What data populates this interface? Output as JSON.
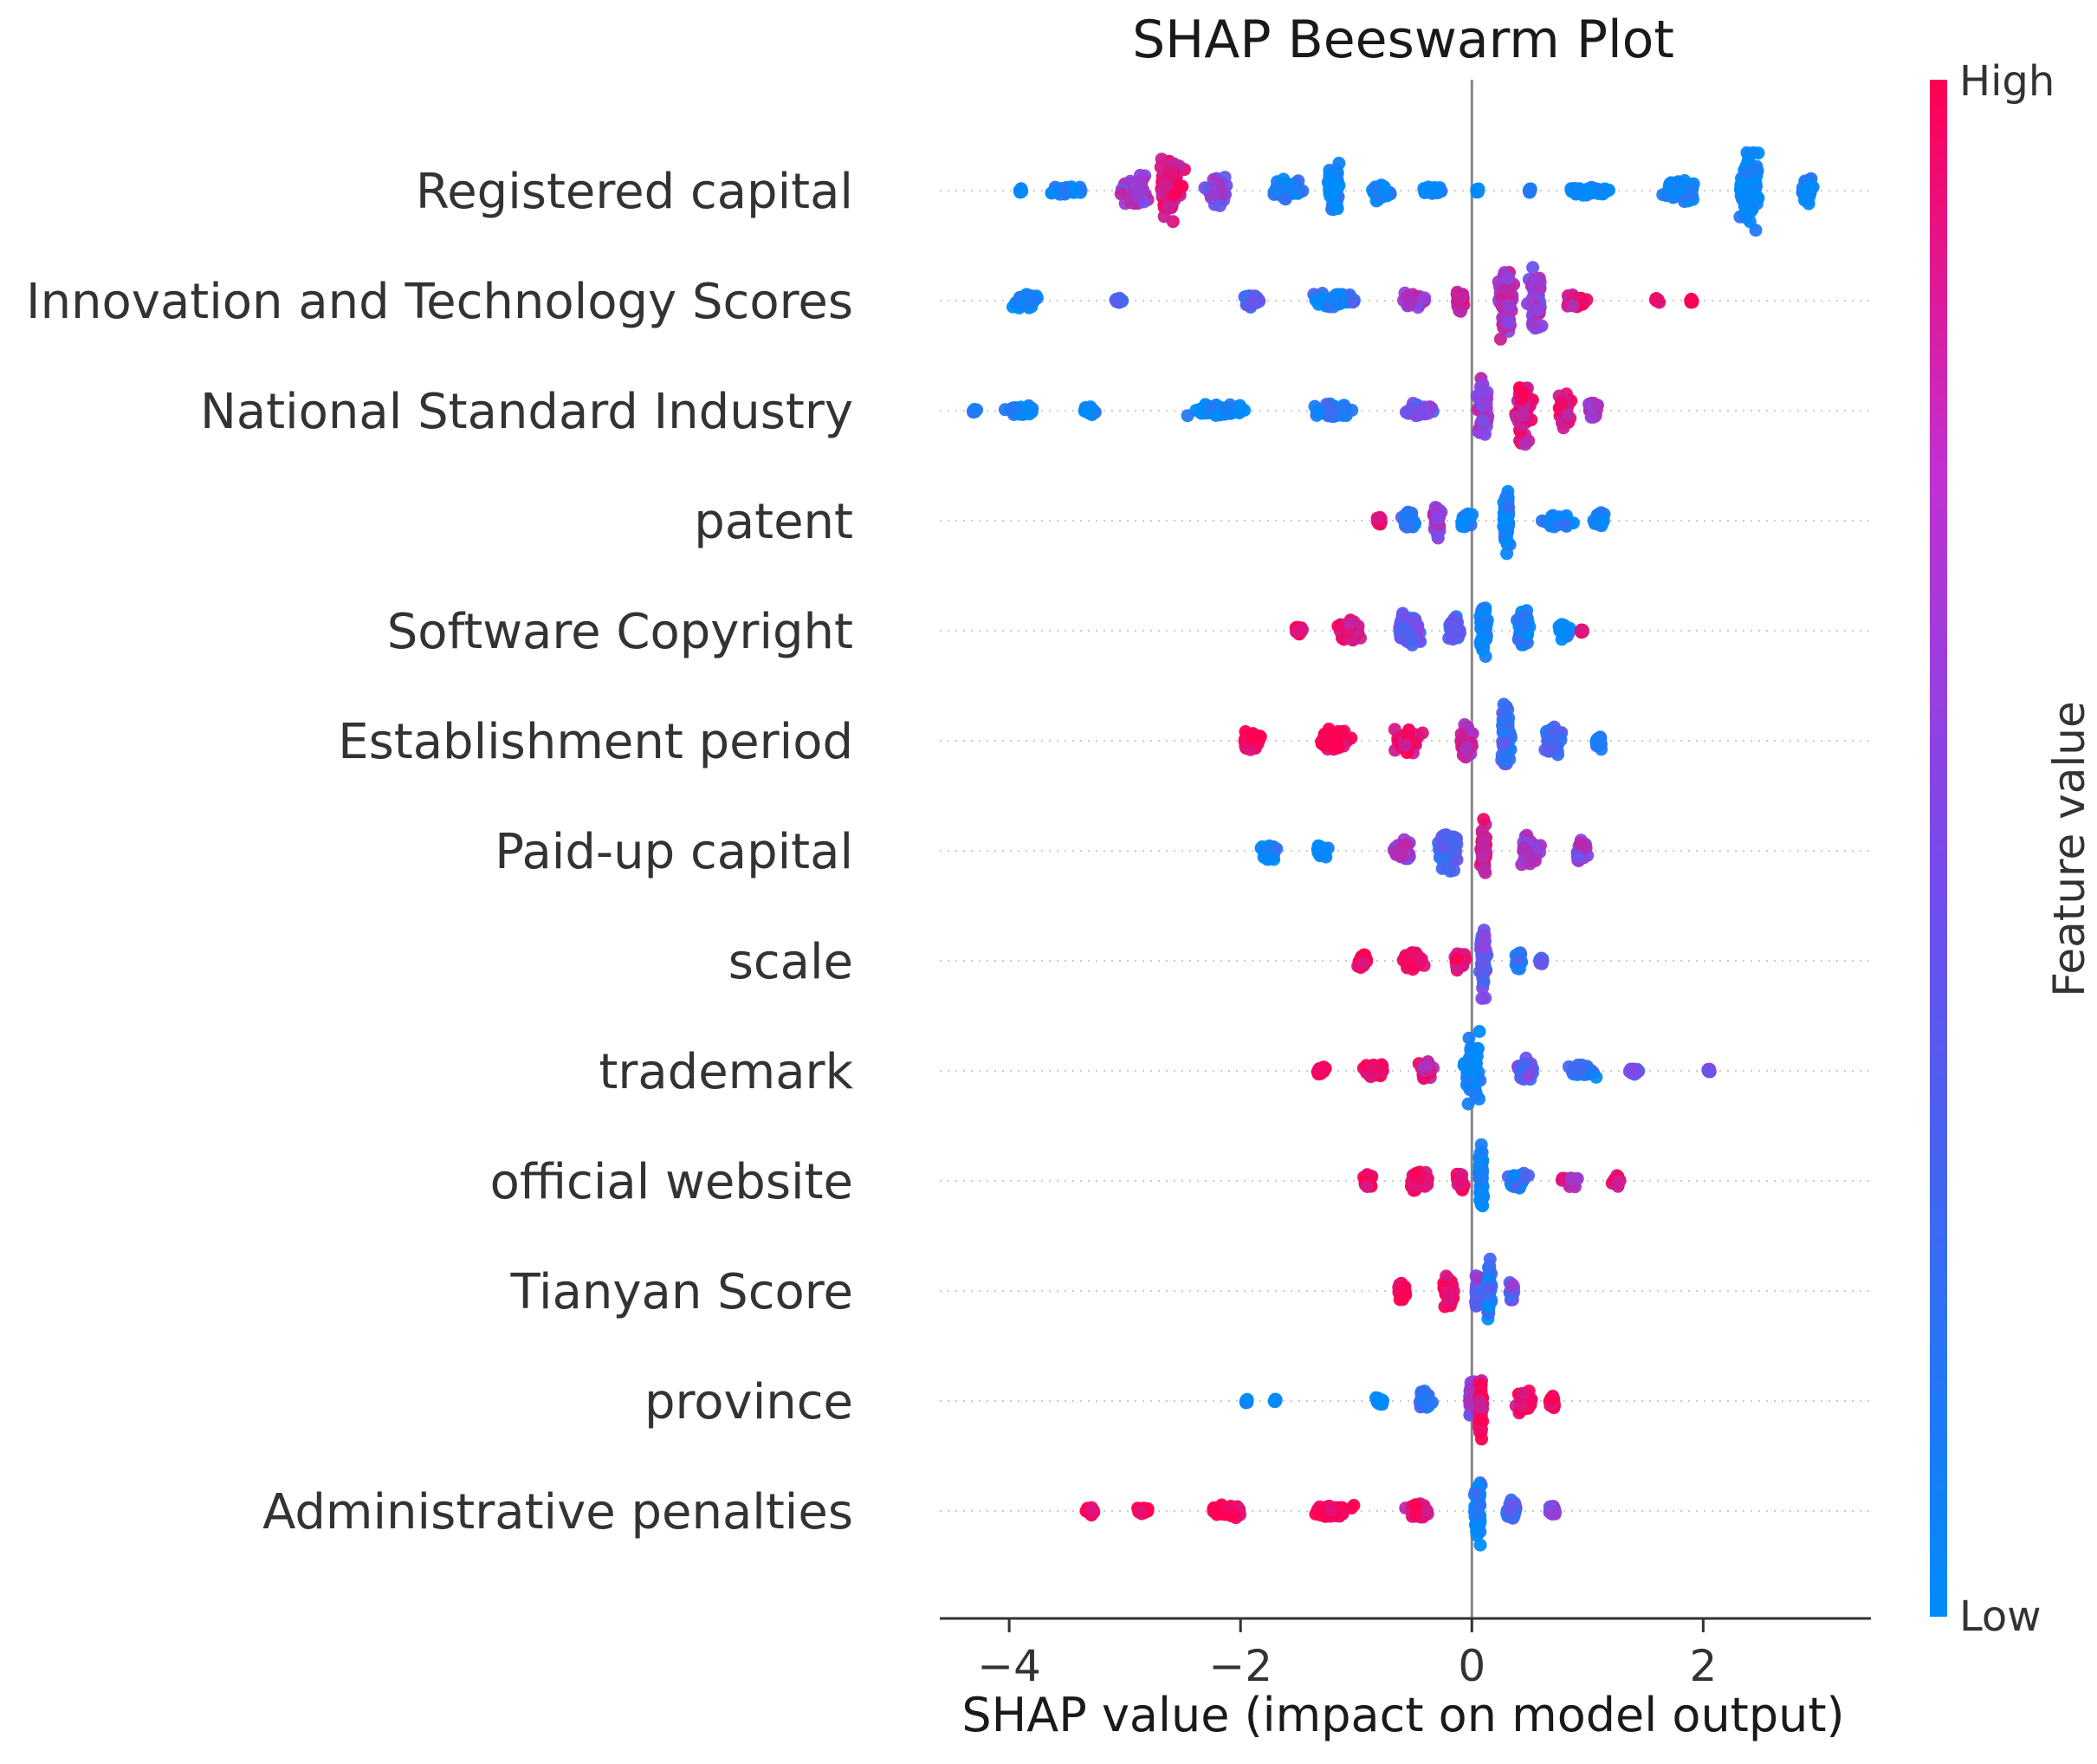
{
  "chart_data": {
    "type": "scatter",
    "subtype": "shap-beeswarm",
    "title": "SHAP Beeswarm Plot",
    "xlabel": "SHAP value (impact on model output)",
    "xlim": [
      -4.6,
      3.45
    ],
    "xticks": [
      -4,
      -2,
      0,
      2
    ],
    "xtick_labels": [
      "−4",
      "−2",
      "0",
      "2"
    ],
    "colorbar": {
      "title": "Feature value",
      "high_label": "High",
      "low_label": "Low",
      "low_color": "#008bfb",
      "mid_color": "#8a45e6",
      "high_color": "#ff0052"
    },
    "features": [
      {
        "name": "Registered capital",
        "clusters": [
          {
            "x": -3.9,
            "w": 0.02,
            "h": 0.04,
            "c": 0.0
          },
          {
            "x": -3.5,
            "w": 0.35,
            "h": 0.12,
            "c": 0.05
          },
          {
            "x": -2.9,
            "w": 0.3,
            "h": 0.45,
            "c": 0.6
          },
          {
            "x": -2.6,
            "w": 0.3,
            "h": 0.85,
            "c": 0.82
          },
          {
            "x": -2.2,
            "w": 0.25,
            "h": 0.4,
            "c": 0.5
          },
          {
            "x": -1.6,
            "w": 0.35,
            "h": 0.35,
            "c": 0.08
          },
          {
            "x": -1.2,
            "w": 0.15,
            "h": 0.75,
            "c": 0.02
          },
          {
            "x": -0.8,
            "w": 0.25,
            "h": 0.3,
            "c": 0.02
          },
          {
            "x": -0.35,
            "w": 0.25,
            "h": 0.12,
            "c": 0.0
          },
          {
            "x": 0.05,
            "w": 0.02,
            "h": 0.02,
            "c": 0.0
          },
          {
            "x": 0.5,
            "w": 0.02,
            "h": 0.02,
            "c": 0.0
          },
          {
            "x": 1.0,
            "w": 0.5,
            "h": 0.12,
            "c": 0.0
          },
          {
            "x": 1.8,
            "w": 0.35,
            "h": 0.3,
            "c": 0.0
          },
          {
            "x": 2.4,
            "w": 0.25,
            "h": 1.0,
            "c": 0.0
          },
          {
            "x": 2.9,
            "w": 0.15,
            "h": 0.35,
            "c": 0.0
          }
        ]
      },
      {
        "name": "Innovation and Technology Scores",
        "clusters": [
          {
            "x": -3.85,
            "w": 0.28,
            "h": 0.22,
            "c": 0.05
          },
          {
            "x": -3.05,
            "w": 0.08,
            "h": 0.06,
            "c": 0.3
          },
          {
            "x": -1.9,
            "w": 0.2,
            "h": 0.22,
            "c": 0.35
          },
          {
            "x": -1.2,
            "w": 0.45,
            "h": 0.22,
            "c": 0.12
          },
          {
            "x": -0.5,
            "w": 0.25,
            "h": 0.22,
            "c": 0.6
          },
          {
            "x": -0.1,
            "w": 0.1,
            "h": 0.3,
            "c": 0.85
          },
          {
            "x": 0.3,
            "w": 0.2,
            "h": 0.95,
            "c": 0.65
          },
          {
            "x": 0.55,
            "w": 0.15,
            "h": 0.9,
            "c": 0.55
          },
          {
            "x": 0.9,
            "w": 0.25,
            "h": 0.18,
            "c": 0.85
          },
          {
            "x": 1.6,
            "w": 0.05,
            "h": 0.03,
            "c": 1.0
          },
          {
            "x": 1.9,
            "w": 0.02,
            "h": 0.03,
            "c": 1.0
          }
        ]
      },
      {
        "name": "National Standard Industry",
        "clusters": [
          {
            "x": -4.3,
            "w": 0.05,
            "h": 0.04,
            "c": 0.0
          },
          {
            "x": -3.9,
            "w": 0.3,
            "h": 0.15,
            "c": 0.0
          },
          {
            "x": -3.3,
            "w": 0.15,
            "h": 0.12,
            "c": 0.0
          },
          {
            "x": -2.2,
            "w": 0.6,
            "h": 0.2,
            "c": 0.02
          },
          {
            "x": -1.2,
            "w": 0.4,
            "h": 0.2,
            "c": 0.1
          },
          {
            "x": -0.45,
            "w": 0.35,
            "h": 0.22,
            "c": 0.4
          },
          {
            "x": 0.1,
            "w": 0.12,
            "h": 0.95,
            "c": 0.55
          },
          {
            "x": 0.45,
            "w": 0.2,
            "h": 0.85,
            "c": 0.85
          },
          {
            "x": 0.8,
            "w": 0.15,
            "h": 0.6,
            "c": 0.85
          },
          {
            "x": 1.05,
            "w": 0.1,
            "h": 0.3,
            "c": 0.7
          }
        ]
      },
      {
        "name": "patent",
        "clusters": [
          {
            "x": -0.8,
            "w": 0.05,
            "h": 0.15,
            "c": 0.95
          },
          {
            "x": -0.55,
            "w": 0.15,
            "h": 0.28,
            "c": 0.15
          },
          {
            "x": -0.3,
            "w": 0.1,
            "h": 0.5,
            "c": 0.6
          },
          {
            "x": -0.05,
            "w": 0.12,
            "h": 0.18,
            "c": 0.05
          },
          {
            "x": 0.3,
            "w": 0.08,
            "h": 0.95,
            "c": 0.02
          },
          {
            "x": 0.75,
            "w": 0.3,
            "h": 0.2,
            "c": 0.02
          },
          {
            "x": 1.1,
            "w": 0.1,
            "h": 0.25,
            "c": 0.0
          }
        ]
      },
      {
        "name": "Software Copyright",
        "clusters": [
          {
            "x": -1.5,
            "w": 0.1,
            "h": 0.1,
            "c": 1.0
          },
          {
            "x": -1.05,
            "w": 0.3,
            "h": 0.3,
            "c": 0.9
          },
          {
            "x": -0.55,
            "w": 0.25,
            "h": 0.45,
            "c": 0.35
          },
          {
            "x": -0.15,
            "w": 0.12,
            "h": 0.4,
            "c": 0.25
          },
          {
            "x": 0.1,
            "w": 0.1,
            "h": 0.95,
            "c": 0.05
          },
          {
            "x": 0.45,
            "w": 0.15,
            "h": 0.65,
            "c": 0.05
          },
          {
            "x": 0.8,
            "w": 0.15,
            "h": 0.2,
            "c": 0.05
          },
          {
            "x": 0.95,
            "w": 0.02,
            "h": 0.05,
            "c": 1.0
          }
        ]
      },
      {
        "name": "Establishment period",
        "clusters": [
          {
            "x": -1.9,
            "w": 0.2,
            "h": 0.28,
            "c": 1.0
          },
          {
            "x": -1.2,
            "w": 0.4,
            "h": 0.35,
            "c": 0.98
          },
          {
            "x": -0.55,
            "w": 0.3,
            "h": 0.35,
            "c": 0.92
          },
          {
            "x": -0.05,
            "w": 0.15,
            "h": 0.5,
            "c": 0.75
          },
          {
            "x": 0.3,
            "w": 0.12,
            "h": 0.95,
            "c": 0.2
          },
          {
            "x": 0.7,
            "w": 0.2,
            "h": 0.4,
            "c": 0.3
          },
          {
            "x": 1.1,
            "w": 0.1,
            "h": 0.2,
            "c": 0.1
          }
        ]
      },
      {
        "name": "Paid-up capital",
        "clusters": [
          {
            "x": -1.75,
            "w": 0.2,
            "h": 0.22,
            "c": 0.0
          },
          {
            "x": -1.3,
            "w": 0.15,
            "h": 0.15,
            "c": 0.0
          },
          {
            "x": -0.6,
            "w": 0.25,
            "h": 0.3,
            "c": 0.6
          },
          {
            "x": -0.2,
            "w": 0.2,
            "h": 0.55,
            "c": 0.3
          },
          {
            "x": 0.1,
            "w": 0.08,
            "h": 0.95,
            "c": 0.85
          },
          {
            "x": 0.5,
            "w": 0.25,
            "h": 0.4,
            "c": 0.6
          },
          {
            "x": 0.95,
            "w": 0.12,
            "h": 0.35,
            "c": 0.55
          }
        ]
      },
      {
        "name": "scale",
        "clusters": [
          {
            "x": -0.95,
            "w": 0.15,
            "h": 0.22,
            "c": 1.0
          },
          {
            "x": -0.5,
            "w": 0.25,
            "h": 0.3,
            "c": 1.0
          },
          {
            "x": -0.1,
            "w": 0.12,
            "h": 0.25,
            "c": 0.85
          },
          {
            "x": 0.1,
            "w": 0.08,
            "h": 0.95,
            "c": 0.35
          },
          {
            "x": 0.4,
            "w": 0.1,
            "h": 0.3,
            "c": 0.1
          },
          {
            "x": 0.6,
            "w": 0.05,
            "h": 0.1,
            "c": 0.4
          }
        ]
      },
      {
        "name": "trademark",
        "clusters": [
          {
            "x": -1.3,
            "w": 0.1,
            "h": 0.12,
            "c": 1.0
          },
          {
            "x": -0.85,
            "w": 0.25,
            "h": 0.22,
            "c": 1.0
          },
          {
            "x": -0.4,
            "w": 0.15,
            "h": 0.25,
            "c": 0.8
          },
          {
            "x": 0.0,
            "w": 0.2,
            "h": 1.0,
            "c": 0.02
          },
          {
            "x": 0.45,
            "w": 0.2,
            "h": 0.3,
            "c": 0.35
          },
          {
            "x": 0.95,
            "w": 0.3,
            "h": 0.18,
            "c": 0.15
          },
          {
            "x": 1.4,
            "w": 0.1,
            "h": 0.1,
            "c": 0.45
          },
          {
            "x": 2.05,
            "w": 0.02,
            "h": 0.04,
            "c": 0.5
          }
        ]
      },
      {
        "name": "official website",
        "clusters": [
          {
            "x": -0.9,
            "w": 0.1,
            "h": 0.2,
            "c": 1.0
          },
          {
            "x": -0.45,
            "w": 0.25,
            "h": 0.3,
            "c": 1.0
          },
          {
            "x": -0.1,
            "w": 0.08,
            "h": 0.3,
            "c": 0.9
          },
          {
            "x": 0.08,
            "w": 0.06,
            "h": 0.95,
            "c": 0.02
          },
          {
            "x": 0.4,
            "w": 0.2,
            "h": 0.3,
            "c": 0.15
          },
          {
            "x": 0.85,
            "w": 0.2,
            "h": 0.2,
            "c": 0.7
          },
          {
            "x": 1.25,
            "w": 0.1,
            "h": 0.18,
            "c": 0.9
          }
        ]
      },
      {
        "name": "Tianyan Score",
        "clusters": [
          {
            "x": -0.6,
            "w": 0.12,
            "h": 0.3,
            "c": 1.0
          },
          {
            "x": -0.2,
            "w": 0.12,
            "h": 0.5,
            "c": 1.0
          },
          {
            "x": 0.05,
            "w": 0.06,
            "h": 0.55,
            "c": 0.45
          },
          {
            "x": 0.15,
            "w": 0.06,
            "h": 0.9,
            "c": 0.15
          },
          {
            "x": 0.35,
            "w": 0.06,
            "h": 0.25,
            "c": 0.4
          }
        ]
      },
      {
        "name": "province",
        "clusters": [
          {
            "x": -1.95,
            "w": 0.03,
            "h": 0.06,
            "c": 0.0
          },
          {
            "x": -1.7,
            "w": 0.03,
            "h": 0.06,
            "c": 0.0
          },
          {
            "x": -0.8,
            "w": 0.1,
            "h": 0.15,
            "c": 0.0
          },
          {
            "x": -0.4,
            "w": 0.15,
            "h": 0.25,
            "c": 0.2
          },
          {
            "x": 0.0,
            "w": 0.08,
            "h": 0.6,
            "c": 0.5
          },
          {
            "x": 0.08,
            "w": 0.06,
            "h": 0.95,
            "c": 0.9
          },
          {
            "x": 0.45,
            "w": 0.2,
            "h": 0.35,
            "c": 0.92
          },
          {
            "x": 0.7,
            "w": 0.08,
            "h": 0.18,
            "c": 1.0
          }
        ]
      },
      {
        "name": "Administrative penalties",
        "clusters": [
          {
            "x": -3.3,
            "w": 0.12,
            "h": 0.12,
            "c": 1.0
          },
          {
            "x": -2.85,
            "w": 0.12,
            "h": 0.08,
            "c": 1.0
          },
          {
            "x": -2.1,
            "w": 0.4,
            "h": 0.18,
            "c": 1.0
          },
          {
            "x": -1.2,
            "w": 0.4,
            "h": 0.22,
            "c": 0.98
          },
          {
            "x": -0.45,
            "w": 0.3,
            "h": 0.22,
            "c": 0.85
          },
          {
            "x": 0.05,
            "w": 0.08,
            "h": 0.95,
            "c": 0.05
          },
          {
            "x": 0.35,
            "w": 0.15,
            "h": 0.3,
            "c": 0.25
          },
          {
            "x": 0.7,
            "w": 0.08,
            "h": 0.15,
            "c": 0.5
          }
        ]
      }
    ]
  }
}
